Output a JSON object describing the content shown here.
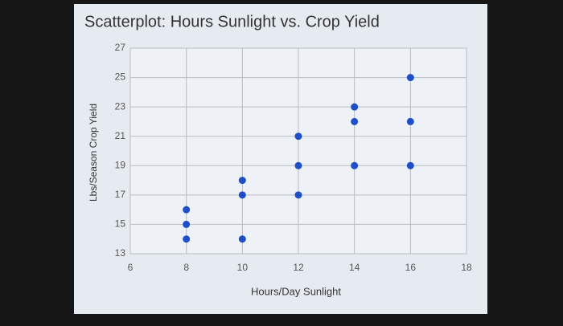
{
  "chart_data": {
    "type": "scatter",
    "title": "Scatterplot: Hours Sunlight vs. Crop Yield",
    "x_label": "Hours/Day Sunlight",
    "y_label": "Lbs/Season Crop Yield",
    "series": [
      {
        "color": "#1f4fc8",
        "x": [
          8,
          8,
          8,
          10,
          10,
          10,
          12,
          12,
          12,
          14,
          14,
          14,
          16,
          16,
          16
        ],
        "values": [
          14,
          15,
          16,
          14,
          17,
          18,
          17,
          19,
          21,
          19,
          22,
          23,
          19,
          22,
          25
        ]
      }
    ],
    "xlim": [
      6,
      18
    ],
    "xticks": [
      6,
      8,
      10,
      12,
      14,
      16,
      18
    ],
    "ylim": [
      13,
      27
    ],
    "yticks": [
      13,
      15,
      17,
      19,
      21,
      23,
      25,
      27
    ],
    "grid": true
  }
}
